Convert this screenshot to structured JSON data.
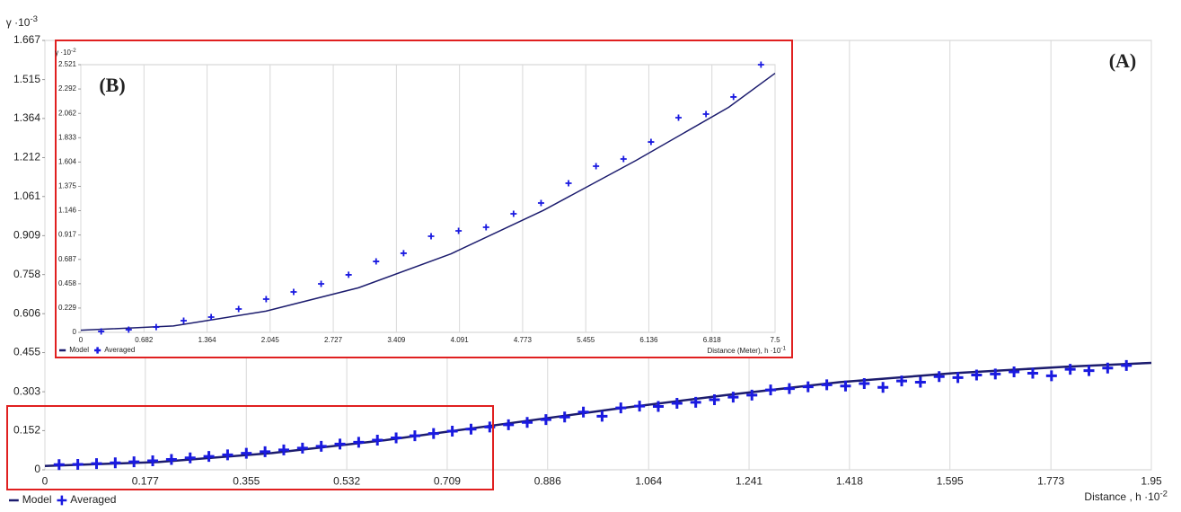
{
  "chart_data": [
    {
      "type": "scatter",
      "panel_label": "(A)",
      "y_label": "γ ·10",
      "y_label_exponent": "-3",
      "x_label": "Distance , h ·10",
      "x_label_exponent": "-2",
      "xlim": [
        0,
        1.95
      ],
      "xticks": [
        0,
        0.177,
        0.355,
        0.532,
        0.709,
        0.886,
        1.064,
        1.241,
        1.418,
        1.595,
        1.773,
        1.95
      ],
      "ylim": [
        0,
        1.667
      ],
      "yticks": [
        0,
        0.152,
        0.303,
        0.455,
        0.606,
        0.758,
        0.909,
        1.061,
        1.212,
        1.364,
        1.515,
        1.667
      ],
      "grid": "x",
      "series": [
        {
          "name": "Model",
          "color": "#1c1c6e",
          "marker": "line",
          "x": [
            0,
            0.2,
            0.4,
            0.6,
            0.8,
            1.0,
            1.2,
            1.4,
            1.6,
            1.8,
            1.95
          ],
          "values": [
            0.015,
            0.03,
            0.065,
            0.115,
            0.175,
            0.235,
            0.29,
            0.34,
            0.375,
            0.4,
            0.415
          ]
        },
        {
          "name": "Averaged",
          "color": "#1a1ae0",
          "marker": "plus",
          "x": [
            0.025,
            0.058,
            0.091,
            0.124,
            0.157,
            0.19,
            0.223,
            0.256,
            0.289,
            0.322,
            0.355,
            0.388,
            0.421,
            0.454,
            0.487,
            0.52,
            0.553,
            0.586,
            0.619,
            0.652,
            0.685,
            0.718,
            0.751,
            0.784,
            0.817,
            0.85,
            0.883,
            0.916,
            0.949,
            0.982,
            1.015,
            1.048,
            1.081,
            1.114,
            1.147,
            1.18,
            1.213,
            1.246,
            1.279,
            1.312,
            1.345,
            1.378,
            1.411,
            1.444,
            1.477,
            1.51,
            1.543,
            1.576,
            1.609,
            1.642,
            1.675,
            1.708,
            1.741,
            1.774,
            1.807,
            1.84,
            1.873,
            1.906
          ],
          "values": [
            0.02,
            0.021,
            0.024,
            0.027,
            0.031,
            0.035,
            0.04,
            0.046,
            0.052,
            0.058,
            0.064,
            0.07,
            0.077,
            0.084,
            0.091,
            0.1,
            0.107,
            0.115,
            0.124,
            0.132,
            0.141,
            0.15,
            0.158,
            0.166,
            0.175,
            0.184,
            0.195,
            0.205,
            0.224,
            0.208,
            0.24,
            0.247,
            0.246,
            0.258,
            0.262,
            0.272,
            0.282,
            0.29,
            0.31,
            0.315,
            0.322,
            0.33,
            0.325,
            0.335,
            0.32,
            0.345,
            0.34,
            0.362,
            0.358,
            0.368,
            0.372,
            0.38,
            0.375,
            0.365,
            0.39,
            0.385,
            0.395,
            0.405
          ]
        }
      ]
    },
    {
      "type": "scatter",
      "panel_label": "(B)",
      "y_label": "γ ·10",
      "y_label_exponent": "-2",
      "x_label": "Distance (Meter), h ·10",
      "x_label_exponent": "-1",
      "xlim": [
        0,
        7.5
      ],
      "xticks": [
        0,
        0.682,
        1.364,
        2.045,
        2.727,
        3.409,
        4.091,
        4.773,
        5.455,
        6.136,
        6.818,
        7.5
      ],
      "ylim": [
        0,
        2.521
      ],
      "yticks": [
        0,
        0.229,
        0.458,
        0.687,
        0.917,
        1.146,
        1.375,
        1.604,
        1.833,
        2.062,
        2.292,
        2.521
      ],
      "grid": "x",
      "series": [
        {
          "name": "Model",
          "color": "#1c1c6e",
          "marker": "line",
          "x": [
            0,
            1,
            2,
            3,
            4,
            5,
            6,
            7,
            7.5
          ],
          "values": [
            0.02,
            0.06,
            0.2,
            0.42,
            0.74,
            1.15,
            1.62,
            2.12,
            2.44
          ]
        },
        {
          "name": "Averaged",
          "color": "#1a1ae0",
          "marker": "plus",
          "x": [
            0.22,
            0.517,
            0.814,
            1.111,
            1.408,
            1.705,
            2.002,
            2.299,
            2.596,
            2.893,
            3.19,
            3.487,
            3.784,
            4.081,
            4.378,
            4.675,
            4.972,
            5.269,
            5.566,
            5.863,
            6.16,
            6.457,
            6.754,
            7.051,
            7.348
          ],
          "values": [
            0.008,
            0.025,
            0.05,
            0.11,
            0.144,
            0.22,
            0.313,
            0.381,
            0.457,
            0.542,
            0.668,
            0.745,
            0.905,
            0.956,
            0.99,
            1.117,
            1.218,
            1.404,
            1.565,
            1.633,
            1.793,
            2.022,
            2.056,
            2.217,
            2.521
          ]
        }
      ]
    }
  ]
}
